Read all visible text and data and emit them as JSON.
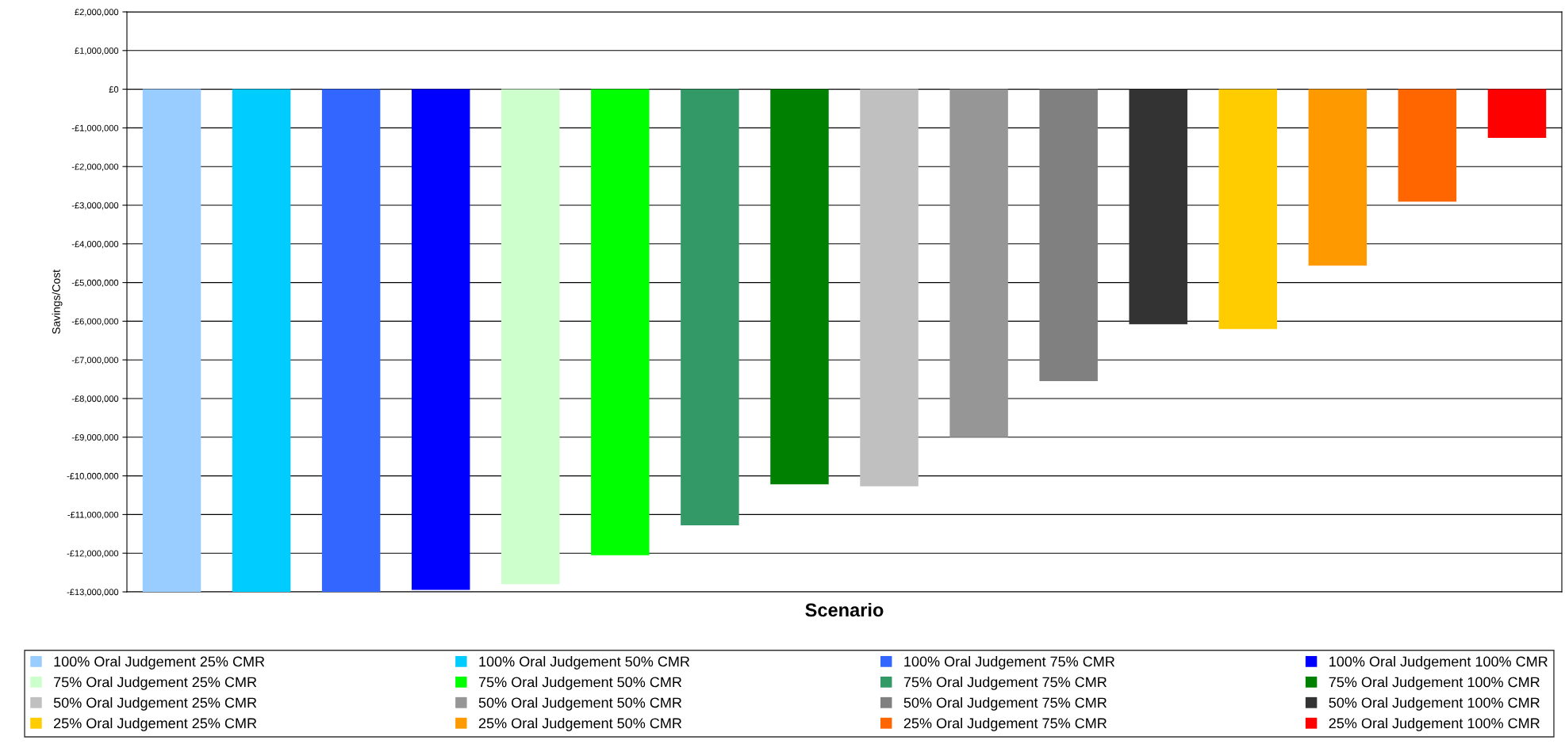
{
  "chart_data": {
    "type": "bar",
    "xlabel": "Scenario",
    "ylabel": "Savings/Cost",
    "categories": [
      null
    ],
    "ylim": [
      -13000000,
      2000000
    ],
    "yticks": [
      {
        "value": 2000000,
        "label": "£2,000,000"
      },
      {
        "value": 1000000,
        "label": "£1,000,000"
      },
      {
        "value": 0,
        "label": "£0"
      },
      {
        "value": -1000000,
        "label": "-£1,000,000"
      },
      {
        "value": -2000000,
        "label": "-£2,000,000"
      },
      {
        "value": -3000000,
        "label": "-£3,000,000"
      },
      {
        "value": -4000000,
        "label": "-£4,000,000"
      },
      {
        "value": -5000000,
        "label": "-£5,000,000"
      },
      {
        "value": -6000000,
        "label": "-£6,000,000"
      },
      {
        "value": -7000000,
        "label": "-£7,000,000"
      },
      {
        "value": -8000000,
        "label": "-£8,000,000"
      },
      {
        "value": -9000000,
        "label": "-£9,000,000"
      },
      {
        "value": -10000000,
        "label": "-£10,000,000"
      },
      {
        "value": -11000000,
        "label": "-£11,000,000"
      },
      {
        "value": -12000000,
        "label": "-£12,000,000"
      },
      {
        "value": -13000000,
        "label": "-£13,000,000"
      }
    ],
    "grid": "y",
    "legend": "bottom",
    "series": [
      {
        "name": "100% Oral Judgement 25% CMR",
        "color": "#99ccff",
        "values": [
          -13000000
        ]
      },
      {
        "name": "100% Oral Judgement 50% CMR",
        "color": "#00ccff",
        "values": [
          -13000000
        ]
      },
      {
        "name": "100% Oral Judgement 75% CMR",
        "color": "#3366ff",
        "values": [
          -13000000
        ]
      },
      {
        "name": "100% Oral Judgement 100% CMR",
        "color": "#0000ff",
        "values": [
          -12950000
        ]
      },
      {
        "name": "75% Oral Judgement 25% CMR",
        "color": "#ccffcc",
        "values": [
          -12800000
        ]
      },
      {
        "name": "75% Oral Judgement 50% CMR",
        "color": "#00ff00",
        "values": [
          -12050000
        ]
      },
      {
        "name": "75% Oral Judgement 75% CMR",
        "color": "#339966",
        "values": [
          -11280000
        ]
      },
      {
        "name": "75% Oral Judgement 100% CMR",
        "color": "#008000",
        "values": [
          -10220000
        ]
      },
      {
        "name": "50% Oral Judgement 25% CMR",
        "color": "#c0c0c0",
        "values": [
          -10270000
        ]
      },
      {
        "name": "50% Oral Judgement 50% CMR",
        "color": "#969696",
        "values": [
          -9000000
        ]
      },
      {
        "name": "50% Oral Judgement 75% CMR",
        "color": "#808080",
        "values": [
          -7550000
        ]
      },
      {
        "name": "50% Oral Judgement 100% CMR",
        "color": "#333333",
        "values": [
          -6080000
        ]
      },
      {
        "name": "25% Oral Judgement 25% CMR",
        "color": "#ffcc00",
        "values": [
          -6200000
        ]
      },
      {
        "name": "25% Oral Judgement 50% CMR",
        "color": "#ff9900",
        "values": [
          -4560000
        ]
      },
      {
        "name": "25% Oral Judgement 75% CMR",
        "color": "#ff6600",
        "values": [
          -2910000
        ]
      },
      {
        "name": "25% Oral Judgement 100% CMR",
        "color": "#ff0000",
        "values": [
          -1260000
        ]
      }
    ]
  }
}
